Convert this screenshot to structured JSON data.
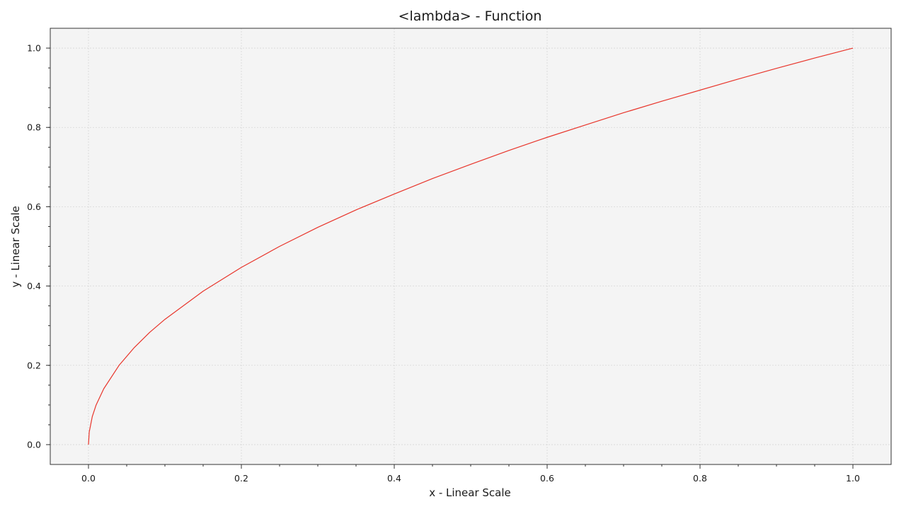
{
  "chart_data": {
    "type": "line",
    "title": "<lambda> - Function",
    "xlabel": "x - Linear Scale",
    "ylabel": "y - Linear Scale",
    "xlim": [
      -0.05,
      1.05
    ],
    "ylim": [
      -0.05,
      1.05
    ],
    "x_ticks": [
      0.0,
      0.2,
      0.4,
      0.6,
      0.8,
      1.0
    ],
    "y_ticks": [
      0.0,
      0.2,
      0.4,
      0.6,
      0.8,
      1.0
    ],
    "x_tick_labels": [
      "0.0",
      "0.2",
      "0.4",
      "0.6",
      "0.8",
      "1.0"
    ],
    "y_tick_labels": [
      "0.0",
      "0.2",
      "0.4",
      "0.6",
      "0.8",
      "1.0"
    ],
    "x_minor_step": 0.05,
    "y_minor_step": 0.05,
    "grid": true,
    "series": [
      {
        "color": "#e8352b",
        "x": [
          0.0,
          0.001,
          0.005,
          0.01,
          0.02,
          0.04,
          0.06,
          0.08,
          0.1,
          0.15,
          0.2,
          0.25,
          0.3,
          0.35,
          0.4,
          0.45,
          0.5,
          0.55,
          0.6,
          0.65,
          0.7,
          0.75,
          0.8,
          0.85,
          0.9,
          0.95,
          1.0
        ],
        "y": [
          0.0,
          0.032,
          0.071,
          0.1,
          0.141,
          0.2,
          0.245,
          0.283,
          0.316,
          0.387,
          0.447,
          0.5,
          0.548,
          0.592,
          0.632,
          0.671,
          0.707,
          0.742,
          0.775,
          0.806,
          0.837,
          0.866,
          0.894,
          0.922,
          0.949,
          0.975,
          1.0
        ]
      }
    ]
  },
  "colors": {
    "plot_background": "#f4f4f4",
    "grid": "#d6d6d6",
    "axis": "#333333",
    "line": "#e8352b"
  }
}
